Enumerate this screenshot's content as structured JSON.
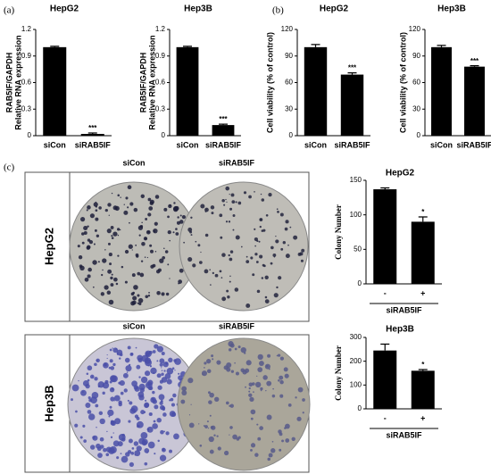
{
  "panel_labels": [
    "(a)",
    "(b)",
    "(c)"
  ],
  "plates": {
    "columns": [
      "siCon",
      "siRAB5IF"
    ],
    "rows": [
      "HepG2",
      "Hep3B"
    ]
  },
  "chart_data": [
    {
      "type": "bar",
      "title": "HepG2",
      "ylabel": [
        "RAB5IF/GAPDH",
        "Relative RNA expression"
      ],
      "categories": [
        "siCon",
        "siRAB5IF"
      ],
      "values": [
        1.0,
        0.02
      ],
      "errors": [
        0.01,
        0.01
      ],
      "annotation": "***",
      "color": "#000000",
      "ylim": [
        0,
        1.2
      ],
      "yticks": [
        0,
        0.3,
        0.6,
        0.9,
        1.2
      ]
    },
    {
      "type": "bar",
      "title": "Hep3B",
      "ylabel": [
        "RAB5IF/GAPDH",
        "Relative RNA expression"
      ],
      "categories": [
        "siCon",
        "siRAB5IF"
      ],
      "values": [
        1.0,
        0.12
      ],
      "errors": [
        0.01,
        0.01
      ],
      "annotation": "***",
      "color": "#000000",
      "ylim": [
        0,
        1.2
      ],
      "yticks": [
        0,
        0.3,
        0.6,
        0.9,
        1.2
      ]
    },
    {
      "type": "bar",
      "title": "HepG2",
      "ylabel": [
        "Cell viability (% of control)"
      ],
      "categories": [
        "siCon",
        "siRAB5IF"
      ],
      "values": [
        100,
        69
      ],
      "errors": [
        3,
        2
      ],
      "annotation": "***",
      "color": "#000000",
      "ylim": [
        0,
        120
      ],
      "yticks": [
        0,
        30,
        60,
        90,
        120
      ]
    },
    {
      "type": "bar",
      "title": "Hep3B",
      "ylabel": [
        "Cell viability (% of control)"
      ],
      "categories": [
        "siCon",
        "siRAB5IF"
      ],
      "values": [
        100,
        78
      ],
      "errors": [
        2,
        1
      ],
      "annotation": "***",
      "color": "#000000",
      "ylim": [
        0,
        120
      ],
      "yticks": [
        0,
        30,
        60,
        90,
        120
      ]
    },
    {
      "type": "bar",
      "title": "HepG2",
      "ylabel": [
        "Colony Number"
      ],
      "xlabel": "siRAB5IF",
      "categories": [
        "-",
        "+"
      ],
      "values": [
        137,
        90
      ],
      "errors": [
        2,
        7
      ],
      "annotation": "*",
      "color": "#000000",
      "ylim": [
        0,
        150
      ],
      "yticks": [
        0,
        50,
        100,
        150
      ]
    },
    {
      "type": "bar",
      "title": "Hep3B",
      "ylabel": [
        "Colony Number"
      ],
      "xlabel": "siRAB5IF",
      "categories": [
        "-",
        "+"
      ],
      "values": [
        245,
        160
      ],
      "errors": [
        27,
        5
      ],
      "annotation": "*",
      "color": "#000000",
      "ylim": [
        0,
        300
      ],
      "yticks": [
        0,
        100,
        200,
        300
      ]
    }
  ]
}
